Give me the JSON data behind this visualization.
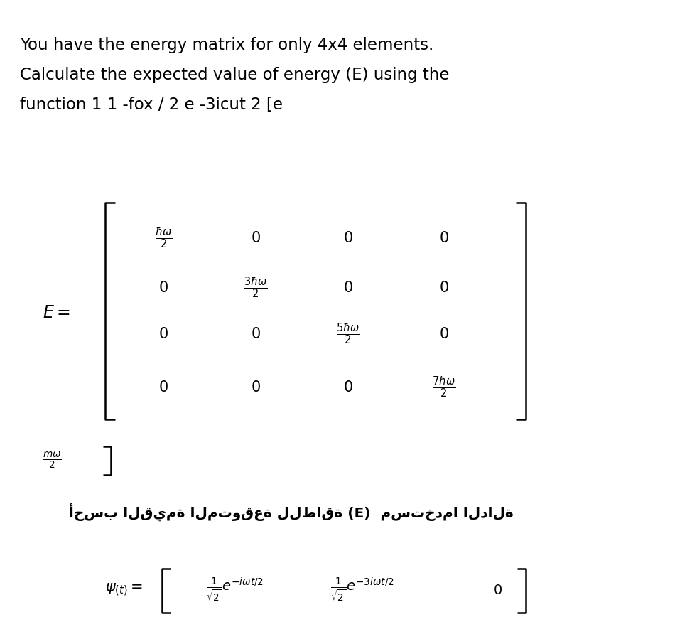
{
  "background_color": "#ffffff",
  "top_text_lines": [
    "You have the energy matrix for only 4x4 elements.",
    "Calculate the expected value of energy (E) using the",
    "function 1 1 -fox / 2 e -3icut 2 [e"
  ],
  "matrix_entries": [
    [
      "\\frac{\\hbar\\omega}{2}",
      "0",
      "0",
      "0"
    ],
    [
      "0",
      "\\frac{3\\hbar\\omega}{2}",
      "0",
      "0"
    ],
    [
      "0",
      "0",
      "\\frac{5\\hbar\\omega}{2}",
      "0"
    ],
    [
      "0",
      "0",
      "0",
      "\\frac{7\\hbar\\omega}{2}"
    ]
  ],
  "bottom_fraction_tex": "\\frac{m\\omega}{2}",
  "arabic_text": "أحسب القيمة المتوقعة للطاقة (E)  مستخدما الدالة",
  "psi_label": "\\psi_{(t)} =",
  "psi_entries": [
    "\\frac{1}{\\sqrt{2}}e^{-i\\omega t/2}",
    "\\frac{1}{\\sqrt{2}}e^{-3i\\omega t/2}",
    "0"
  ]
}
